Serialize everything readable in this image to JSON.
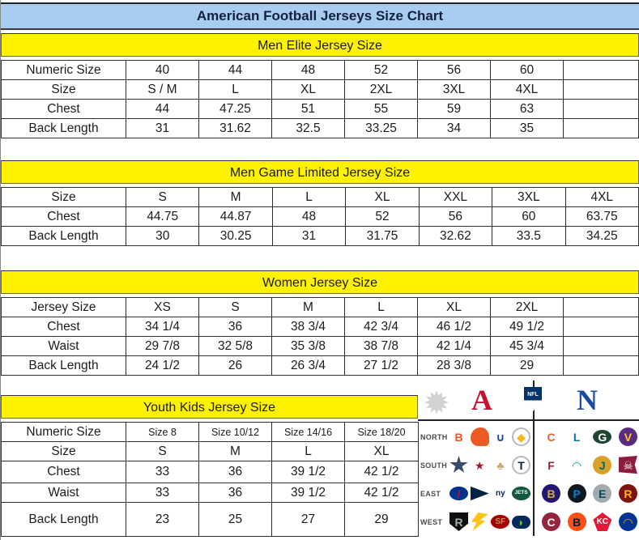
{
  "title": "American Football Jerseys Size Chart",
  "colors": {
    "title_bg": "#A9CDF0",
    "band_bg": "#FFF200",
    "afc_red": "#C8102E",
    "nfc_blue": "#1B4A9E",
    "border": "#2E2E2E"
  },
  "tables": [
    {
      "id": "men-elite",
      "header": "Men Elite Jersey Size",
      "rows": [
        {
          "label": "Numeric Size",
          "cells": [
            "40",
            "44",
            "48",
            "52",
            "56",
            "60",
            ""
          ]
        },
        {
          "label": "Size",
          "cells": [
            "S / M",
            "L",
            "XL",
            "2XL",
            "3XL",
            "4XL",
            ""
          ]
        },
        {
          "label": "Chest",
          "cells": [
            "44",
            "47.25",
            "51",
            "55",
            "59",
            "63",
            ""
          ]
        },
        {
          "label": "Back Length",
          "cells": [
            "31",
            "31.62",
            "32.5",
            "33.25",
            "34",
            "35",
            ""
          ]
        }
      ]
    },
    {
      "id": "men-game-limited",
      "header": "Men Game Limited Jersey Size",
      "rows": [
        {
          "label": "Size",
          "cells": [
            "S",
            "M",
            "L",
            "XL",
            "XXL",
            "3XL",
            "4XL"
          ]
        },
        {
          "label": "Chest",
          "cells": [
            "44.75",
            "44.87",
            "48",
            "52",
            "56",
            "60",
            "63.75"
          ]
        },
        {
          "label": "Back Length",
          "cells": [
            "30",
            "30.25",
            "31",
            "31.75",
            "32.62",
            "33.5",
            "34.25"
          ]
        }
      ]
    },
    {
      "id": "women",
      "header": "Women Jersey Size",
      "rows": [
        {
          "label": "Jersey Size",
          "cells": [
            "XS",
            "S",
            "M",
            "L",
            "XL",
            "2XL",
            ""
          ]
        },
        {
          "label": "Chest",
          "cells": [
            "34 1/4",
            "36",
            "38 3/4",
            "42 3/4",
            "46 1/2",
            "49 1/2",
            ""
          ]
        },
        {
          "label": "Waist",
          "cells": [
            "29 7/8",
            "32 5/8",
            "35 3/8",
            "38 7/8",
            "42 1/4",
            "45 3/4",
            ""
          ]
        },
        {
          "label": "Back Length",
          "cells": [
            "24 1/2",
            "26",
            "26 3/4",
            "27 1/2",
            "28 3/8",
            "29",
            ""
          ]
        }
      ]
    },
    {
      "id": "youth-kids",
      "header": "Youth Kids Jersey Size",
      "rows": [
        {
          "label": "Numeric Size",
          "cells": [
            "Size 8",
            "Size 10/12",
            "Size 14/16",
            "Size 18/20"
          ]
        },
        {
          "label": "Size",
          "cells": [
            "S",
            "M",
            "L",
            "XL"
          ]
        },
        {
          "label": "Chest",
          "cells": [
            "33",
            "36",
            "39 1/2",
            "42 1/2"
          ]
        },
        {
          "label": "Waist",
          "cells": [
            "33",
            "36",
            "39 1/2",
            "42 1/2"
          ]
        },
        {
          "label": "Back Length",
          "cells": [
            "23",
            "25",
            "27",
            "29"
          ]
        }
      ]
    }
  ],
  "nfl": {
    "afc_label": "A",
    "nfc_label": "N",
    "shield_label": "NFL",
    "divisions": [
      {
        "label": "NORTH",
        "afc": [
          {
            "team": "bengals",
            "shape": "tile",
            "bg": "#ffffff",
            "fg": "#f4511e",
            "glyph": "B"
          },
          {
            "team": "browns",
            "shape": "helmet",
            "bg": "#ee5a24",
            "fg": "#ffffff",
            "glyph": ""
          },
          {
            "team": "colts",
            "shape": "tile",
            "bg": "#ffffff",
            "fg": "#1d4f91",
            "glyph": "∪"
          },
          {
            "team": "steelers",
            "shape": "ring",
            "bg": "#ffffff",
            "fg": "#ffb612",
            "glyph": "◆"
          }
        ],
        "nfc": [
          {
            "team": "bears",
            "shape": "tile",
            "bg": "#ffffff",
            "fg": "#e8622c",
            "glyph": "C"
          },
          {
            "team": "lions",
            "shape": "tile",
            "bg": "#ffffff",
            "fg": "#0076b6",
            "glyph": "L"
          },
          {
            "team": "packers",
            "shape": "oval",
            "bg": "#1e4632",
            "fg": "#ffffff",
            "glyph": "G"
          },
          {
            "team": "vikings",
            "shape": "circle",
            "bg": "#582c83",
            "fg": "#ffc62f",
            "glyph": "V"
          }
        ]
      },
      {
        "label": "SOUTH",
        "afc": [
          {
            "team": "cowboys",
            "shape": "star",
            "bg": "#3a4a6b",
            "fg": "#ffffff",
            "glyph": ""
          },
          {
            "team": "texans",
            "shape": "tile",
            "bg": "#ffffff",
            "fg": "#a6192e",
            "glyph": "★"
          },
          {
            "team": "saints",
            "shape": "tile",
            "bg": "#ffffff",
            "fg": "#c9a86a",
            "glyph": "♣"
          },
          {
            "team": "titans",
            "shape": "ring",
            "bg": "#ffffff",
            "fg": "#0c2340",
            "glyph": "T"
          }
        ],
        "nfc": [
          {
            "team": "falcons",
            "shape": "tile",
            "bg": "#ffffff",
            "fg": "#a6192e",
            "glyph": "F"
          },
          {
            "team": "dolphins",
            "shape": "circle",
            "bg": "#ffffff",
            "fg": "#008e97",
            "glyph": "◠"
          },
          {
            "team": "jaguars",
            "shape": "circle",
            "bg": "#d7a22a",
            "fg": "#006778",
            "glyph": "J"
          },
          {
            "team": "buccaneers",
            "shape": "flag",
            "bg": "#8d1b3d",
            "fg": "#ffffff",
            "glyph": "☠"
          }
        ]
      },
      {
        "label": "EAST",
        "afc": [
          {
            "team": "bills",
            "shape": "oval",
            "bg": "#00338d",
            "fg": "#c60c30",
            "glyph": "/"
          },
          {
            "team": "patriots",
            "shape": "tri",
            "bg": "#002244",
            "fg": "#c8102e",
            "glyph": ""
          },
          {
            "team": "giants",
            "shape": "tile",
            "bg": "#ffffff",
            "fg": "#0b2265",
            "glyph": "ny"
          },
          {
            "team": "jets",
            "shape": "oval",
            "bg": "#125740",
            "fg": "#ffffff",
            "glyph": "JETS"
          }
        ],
        "nfc": [
          {
            "team": "ravens",
            "shape": "circle",
            "bg": "#241773",
            "fg": "#d0b240",
            "glyph": "B"
          },
          {
            "team": "panthers",
            "shape": "circle",
            "bg": "#101820",
            "fg": "#0085ca",
            "glyph": "P"
          },
          {
            "team": "eagles",
            "shape": "circle",
            "bg": "#a2aaad",
            "fg": "#004c54",
            "glyph": "E"
          },
          {
            "team": "redskins",
            "shape": "circle",
            "bg": "#7c1415",
            "fg": "#ffb612",
            "glyph": "R"
          }
        ]
      },
      {
        "label": "WEST",
        "afc": [
          {
            "team": "raiders",
            "shape": "shield",
            "bg": "#101010",
            "fg": "#a5acaf",
            "glyph": "R"
          },
          {
            "team": "chargers",
            "shape": "bolt",
            "bg": "#ffc20e",
            "fg": "#ffc20e",
            "glyph": ""
          },
          {
            "team": "49ers",
            "shape": "oval",
            "bg": "#aa0000",
            "fg": "#b3995d",
            "glyph": "SF"
          },
          {
            "team": "seahawks",
            "shape": "pill",
            "bg": "#002a5c",
            "fg": "#69be28",
            "glyph": "◗"
          }
        ],
        "nfc": [
          {
            "team": "cardinals",
            "shape": "circle",
            "bg": "#97233f",
            "fg": "#ffffff",
            "glyph": "C"
          },
          {
            "team": "broncos",
            "shape": "circle",
            "bg": "#fb4f14",
            "fg": "#002244",
            "glyph": "B"
          },
          {
            "team": "chiefs",
            "shape": "arrowhead",
            "bg": "#e31837",
            "fg": "#ffffff",
            "glyph": "KC"
          },
          {
            "team": "rams",
            "shape": "circle",
            "bg": "#003594",
            "fg": "#ffa300",
            "glyph": "◠"
          }
        ]
      }
    ]
  }
}
